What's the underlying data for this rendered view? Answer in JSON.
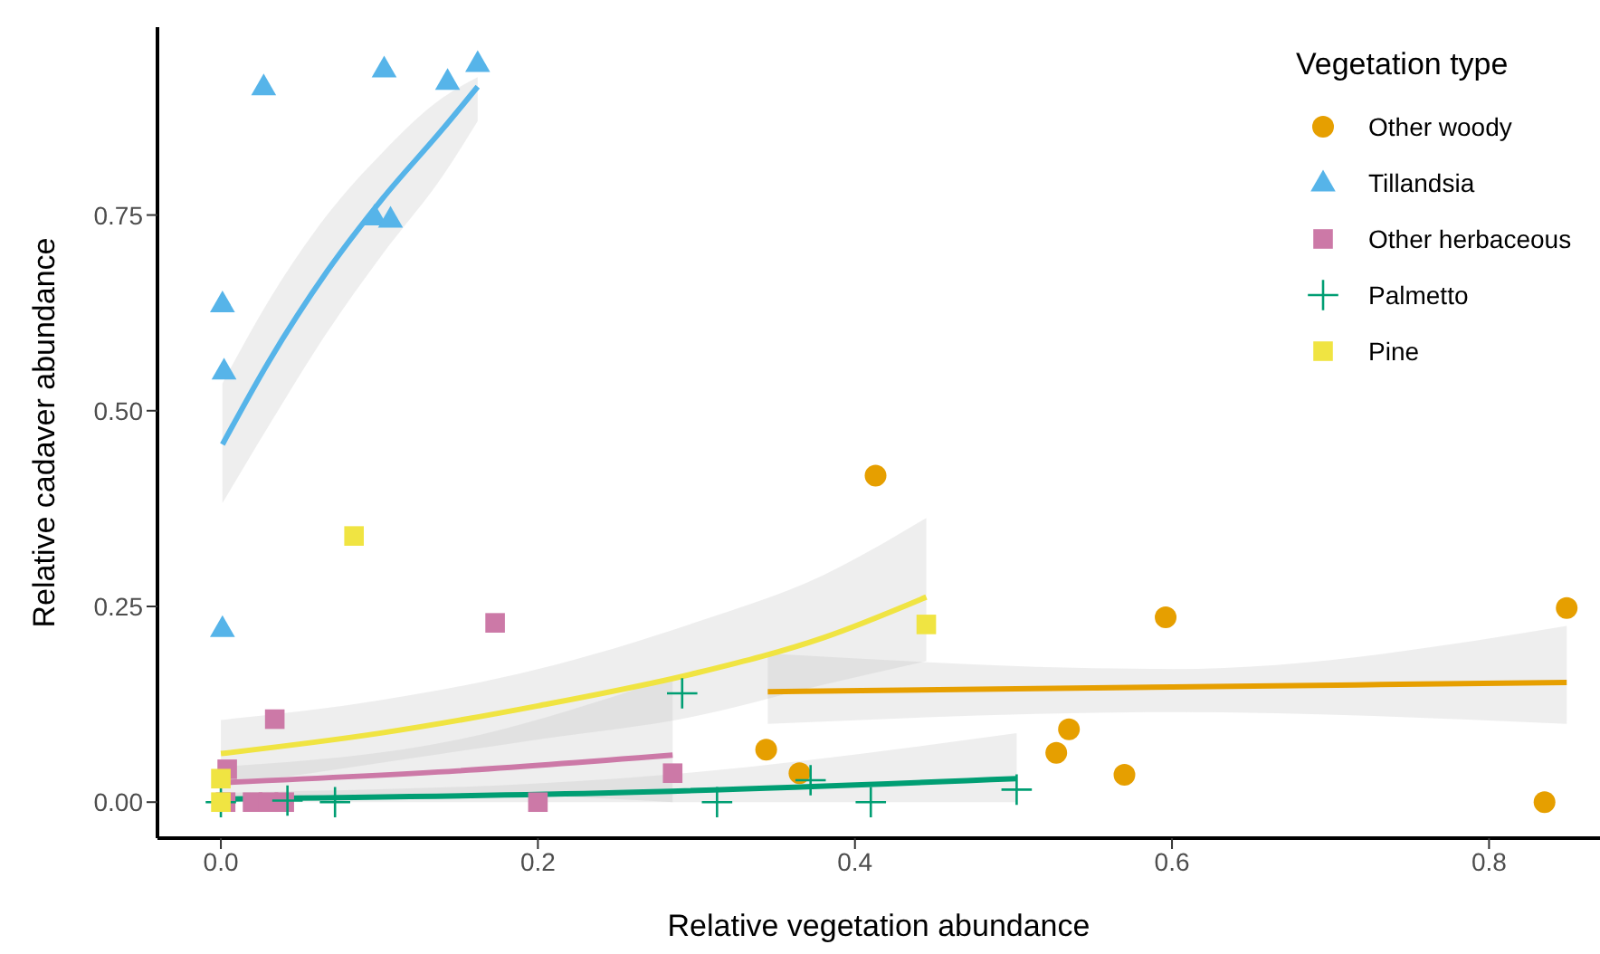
{
  "chart_data": {
    "type": "scatter",
    "xlabel": "Relative vegetation abundance",
    "ylabel": "Relative cadaver abundance",
    "legend_title": "Vegetation type",
    "legend": "top right",
    "grid": false,
    "xlim": [
      -0.04,
      0.87
    ],
    "ylim": [
      -0.046,
      0.99
    ],
    "xticks": [
      {
        "value": 0,
        "label": "0.0"
      },
      {
        "value": 0.2,
        "label": "0.2"
      },
      {
        "value": 0.4,
        "label": "0.4"
      },
      {
        "value": 0.6,
        "label": "0.6"
      },
      {
        "value": 0.8,
        "label": "0.8"
      }
    ],
    "yticks": [
      {
        "value": 0,
        "label": "0.00"
      },
      {
        "value": 0.25,
        "label": "0.25"
      },
      {
        "value": 0.5,
        "label": "0.50"
      },
      {
        "value": 0.75,
        "label": "0.75"
      }
    ],
    "series": [
      {
        "name": "Other woody",
        "marker": "circle",
        "color": "#e69f00",
        "x": [
          0.413,
          0.596,
          0.849,
          0.344,
          0.365,
          0.527,
          0.535,
          0.57,
          0.835
        ],
        "values": [
          0.417,
          0.236,
          0.248,
          0.067,
          0.037,
          0.063,
          0.093,
          0.035,
          0.0
        ]
      },
      {
        "name": "Tillandsia",
        "marker": "triangle",
        "color": "#56b4e9",
        "x": [
          0.027,
          0.103,
          0.143,
          0.162,
          0.097,
          0.107,
          0.001,
          0.002,
          0.001
        ],
        "values": [
          0.914,
          0.937,
          0.921,
          0.944,
          0.748,
          0.745,
          0.637,
          0.551,
          0.222
        ]
      },
      {
        "name": "Other herbaceous",
        "marker": "square",
        "color": "#cc79a7",
        "x": [
          0.034,
          0.173,
          0.004,
          0.003,
          0.02,
          0.03,
          0.04,
          0.2,
          0.285
        ],
        "values": [
          0.106,
          0.229,
          0.042,
          0.0,
          0.0,
          0.0,
          0.0,
          0.0,
          0.037
        ]
      },
      {
        "name": "Palmetto",
        "marker": "cross",
        "color": "#009e73",
        "x": [
          0.0,
          0.042,
          0.072,
          0.291,
          0.313,
          0.372,
          0.41,
          0.502
        ],
        "values": [
          0.0,
          0.002,
          0.0,
          0.139,
          0.0,
          0.028,
          0.0,
          0.016
        ]
      },
      {
        "name": "Pine",
        "marker": "square",
        "color": "#f0e442",
        "x": [
          0.084,
          0.445,
          0.0,
          0.0
        ],
        "values": [
          0.34,
          0.227,
          0.03,
          0.0
        ]
      },
      {
        "type": "line",
        "color": "#e69f00",
        "x": [
          0.345,
          0.6,
          0.849
        ],
        "values": [
          0.141,
          0.147,
          0.153
        ],
        "lower": [
          0.1,
          0.115,
          0.1
        ],
        "upper": [
          0.19,
          0.17,
          0.225
        ]
      },
      {
        "type": "line",
        "color": "#56b4e9",
        "x": [
          0.001,
          0.03,
          0.067,
          0.102,
          0.14,
          0.162
        ],
        "values": [
          0.457,
          0.562,
          0.678,
          0.771,
          0.86,
          0.914
        ],
        "lower": [
          0.382,
          0.48,
          0.6,
          0.7,
          0.8,
          0.87
        ],
        "upper": [
          0.535,
          0.64,
          0.75,
          0.83,
          0.9,
          0.926
        ]
      },
      {
        "type": "line",
        "color": "#cc79a7",
        "x": [
          0.0,
          0.15,
          0.285
        ],
        "values": [
          0.025,
          0.04,
          0.06
        ],
        "lower": [
          0.005,
          0.01,
          0.0
        ],
        "upper": [
          0.045,
          0.08,
          0.16
        ]
      },
      {
        "type": "line",
        "color": "#009e73",
        "x": [
          0.0,
          0.25,
          0.502
        ],
        "values": [
          0.004,
          0.012,
          0.03
        ],
        "lower": [
          0.0,
          0.0,
          0.0
        ],
        "upper": [
          0.012,
          0.03,
          0.088
        ]
      },
      {
        "type": "line",
        "color": "#f0e442",
        "x": [
          0.0,
          0.1,
          0.2,
          0.3,
          0.38,
          0.445
        ],
        "values": [
          0.062,
          0.088,
          0.123,
          0.165,
          0.21,
          0.262
        ],
        "lower": [
          0.02,
          0.05,
          0.08,
          0.11,
          0.15,
          0.18
        ],
        "upper": [
          0.105,
          0.13,
          0.17,
          0.23,
          0.29,
          0.363
        ]
      }
    ]
  }
}
